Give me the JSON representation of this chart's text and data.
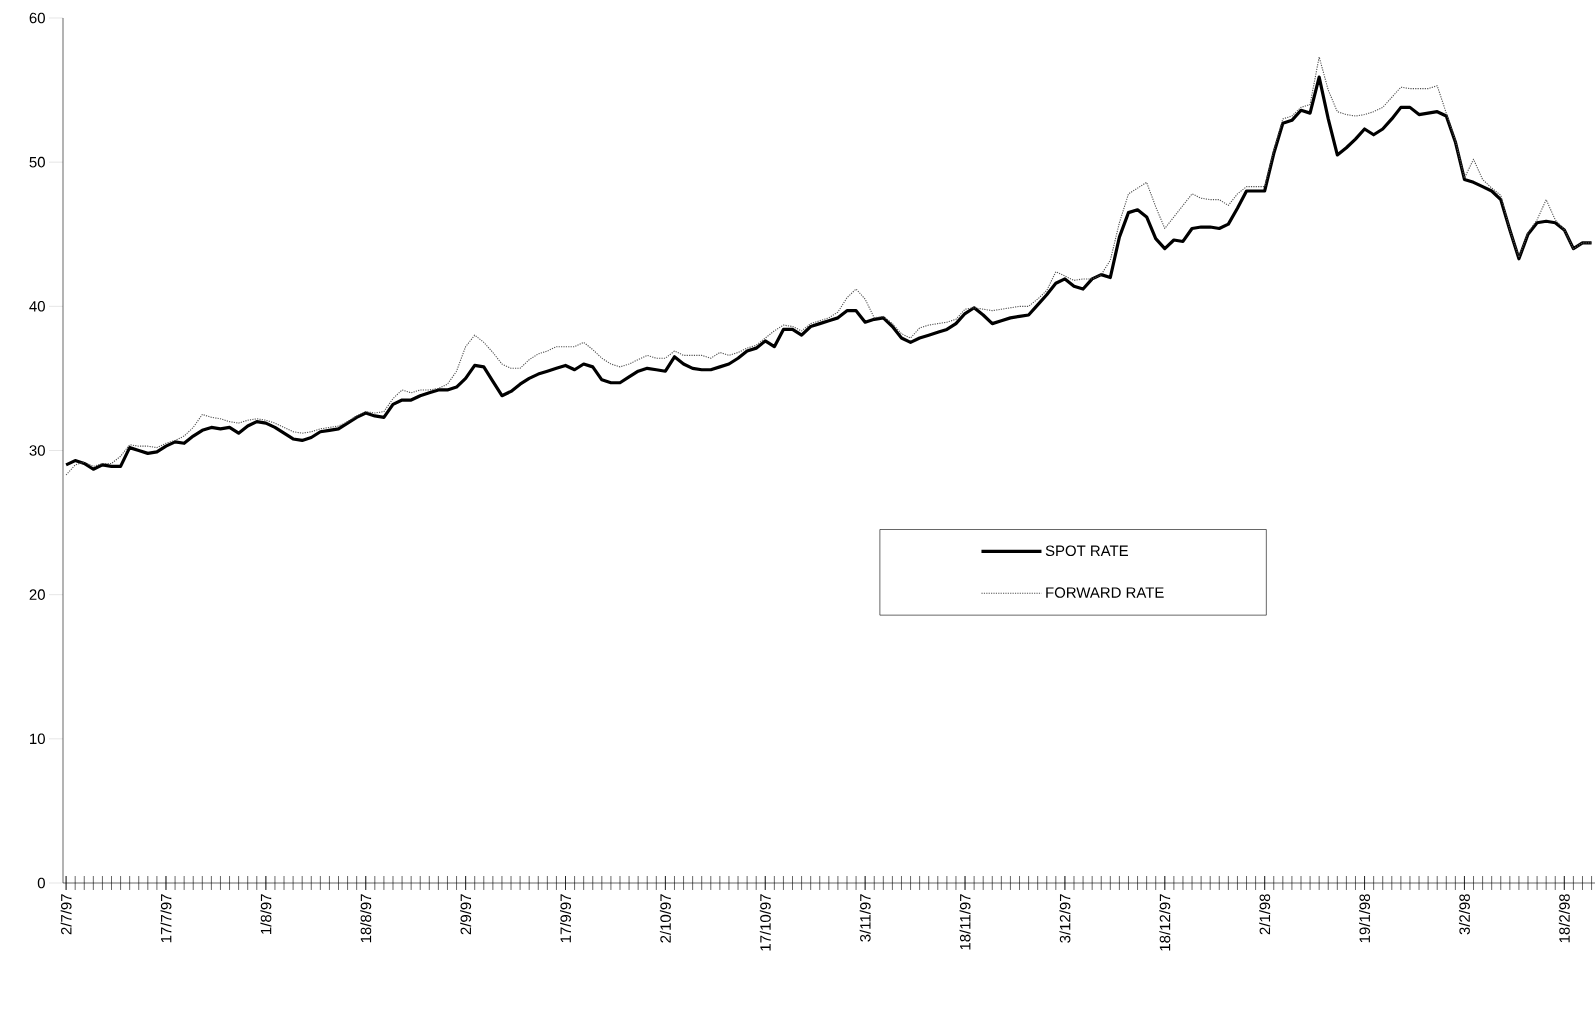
{
  "chart_data": {
    "type": "line",
    "categories": [
      "2/7/97",
      null,
      null,
      null,
      null,
      null,
      null,
      null,
      null,
      null,
      null,
      "17/7/97",
      null,
      null,
      null,
      null,
      null,
      null,
      null,
      null,
      null,
      null,
      "1/8/97",
      null,
      null,
      null,
      null,
      null,
      null,
      null,
      null,
      null,
      null,
      "18/8/97",
      null,
      null,
      null,
      null,
      null,
      null,
      null,
      null,
      null,
      null,
      "2/9/97",
      null,
      null,
      null,
      null,
      null,
      null,
      null,
      null,
      null,
      null,
      "17/9/97",
      null,
      null,
      null,
      null,
      null,
      null,
      null,
      null,
      null,
      null,
      "2/10/97",
      null,
      null,
      null,
      null,
      null,
      null,
      null,
      null,
      null,
      null,
      "17/10/97",
      null,
      null,
      null,
      null,
      null,
      null,
      null,
      null,
      null,
      null,
      "3/11/97",
      null,
      null,
      null,
      null,
      null,
      null,
      null,
      null,
      null,
      null,
      "18/11/97",
      null,
      null,
      null,
      null,
      null,
      null,
      null,
      null,
      null,
      null,
      "3/12/97",
      null,
      null,
      null,
      null,
      null,
      null,
      null,
      null,
      null,
      null,
      "18/12/97",
      null,
      null,
      null,
      null,
      null,
      null,
      null,
      null,
      null,
      null,
      "2/1/98",
      null,
      null,
      null,
      null,
      null,
      null,
      null,
      null,
      null,
      null,
      "19/1/98",
      null,
      null,
      null,
      null,
      null,
      null,
      null,
      null,
      null,
      null,
      "3/2/98",
      null,
      null,
      null,
      null,
      null,
      null,
      null,
      null,
      null,
      null,
      "18/2/98",
      null,
      null,
      null
    ],
    "series": [
      {
        "name": "SPOT RATE",
        "color": "#000000",
        "line_style": "solid",
        "values": [
          29.0,
          29.3,
          29.1,
          28.7,
          29.0,
          28.9,
          28.9,
          30.2,
          30.0,
          29.8,
          29.9,
          30.3,
          30.6,
          30.5,
          31.0,
          31.4,
          31.6,
          31.5,
          31.6,
          31.2,
          31.7,
          32.0,
          31.9,
          31.6,
          31.2,
          30.8,
          30.7,
          30.9,
          31.3,
          31.4,
          31.5,
          31.9,
          32.3,
          32.6,
          32.4,
          32.3,
          33.2,
          33.5,
          33.5,
          33.8,
          34.0,
          34.2,
          34.2,
          34.4,
          35.0,
          35.9,
          35.8,
          34.8,
          33.8,
          34.1,
          34.6,
          35.0,
          35.3,
          35.5,
          35.7,
          35.9,
          35.6,
          36.0,
          35.8,
          34.9,
          34.7,
          34.7,
          35.1,
          35.5,
          35.7,
          35.6,
          35.5,
          36.5,
          36.0,
          35.7,
          35.6,
          35.6,
          35.8,
          36.0,
          36.4,
          36.9,
          37.1,
          37.6,
          37.2,
          38.4,
          38.4,
          38.0,
          38.6,
          38.8,
          39.0,
          39.2,
          39.7,
          39.7,
          38.9,
          39.1,
          39.2,
          38.6,
          37.8,
          37.5,
          37.8,
          38.0,
          38.2,
          38.4,
          38.8,
          39.5,
          39.9,
          39.4,
          38.8,
          39.0,
          39.2,
          39.3,
          39.4,
          40.1,
          40.8,
          41.6,
          41.9,
          41.4,
          41.2,
          41.9,
          42.2,
          42.0,
          44.8,
          46.5,
          46.7,
          46.2,
          44.7,
          44.0,
          44.6,
          44.5,
          45.4,
          45.5,
          45.5,
          45.4,
          45.7,
          46.8,
          48.0,
          48.0,
          48.0,
          50.6,
          52.7,
          52.9,
          53.6,
          53.4,
          55.9,
          53.0,
          50.5,
          51.0,
          51.6,
          52.3,
          51.9,
          52.3,
          53.0,
          53.8,
          53.8,
          53.3,
          53.4,
          53.5,
          53.2,
          51.4,
          48.8,
          48.6,
          48.3,
          48.0,
          47.4,
          45.3,
          43.3,
          45.0,
          45.8,
          45.9,
          45.8,
          45.3,
          44.0,
          44.4,
          44.4
        ]
      },
      {
        "name": "FORWARD RATE",
        "color": "#505050",
        "line_style": "dotted",
        "values": [
          28.3,
          29.0,
          29.2,
          28.9,
          29.1,
          29.1,
          29.6,
          30.4,
          30.3,
          30.3,
          30.2,
          30.5,
          30.7,
          31.0,
          31.6,
          32.5,
          32.3,
          32.2,
          32.0,
          31.9,
          32.1,
          32.2,
          32.1,
          31.9,
          31.6,
          31.3,
          31.2,
          31.3,
          31.5,
          31.6,
          31.7,
          32.0,
          32.4,
          32.7,
          32.6,
          32.7,
          33.6,
          34.2,
          34.0,
          34.2,
          34.2,
          34.3,
          34.6,
          35.5,
          37.2,
          38.0,
          37.5,
          36.8,
          36.0,
          35.7,
          35.7,
          36.3,
          36.7,
          36.9,
          37.2,
          37.2,
          37.2,
          37.5,
          37.0,
          36.4,
          36.0,
          35.8,
          36.0,
          36.3,
          36.6,
          36.4,
          36.4,
          36.9,
          36.6,
          36.6,
          36.6,
          36.4,
          36.8,
          36.6,
          36.8,
          37.1,
          37.3,
          37.8,
          38.3,
          38.7,
          38.6,
          38.3,
          38.8,
          39.0,
          39.2,
          39.6,
          40.6,
          41.2,
          40.5,
          39.2,
          39.3,
          38.8,
          38.1,
          37.8,
          38.5,
          38.7,
          38.8,
          38.9,
          39.1,
          39.8,
          39.9,
          39.8,
          39.7,
          39.8,
          39.9,
          40.0,
          40.0,
          40.5,
          41.1,
          42.4,
          42.1,
          41.8,
          41.9,
          41.9,
          42.2,
          43.2,
          45.8,
          47.8,
          48.2,
          48.6,
          46.9,
          45.4,
          46.2,
          47.0,
          47.8,
          47.5,
          47.4,
          47.4,
          47.0,
          47.8,
          48.3,
          48.3,
          48.3,
          50.8,
          53.0,
          53.2,
          53.8,
          54.0,
          57.3,
          55.0,
          53.5,
          53.3,
          53.2,
          53.3,
          53.5,
          53.8,
          54.5,
          55.2,
          55.1,
          55.1,
          55.1,
          55.3,
          53.4,
          51.5,
          48.9,
          50.2,
          48.8,
          48.2,
          47.7,
          45.3,
          43.4,
          45.1,
          46.0,
          47.4,
          46.0,
          45.3,
          44.0,
          44.4,
          44.4
        ]
      }
    ],
    "ylim": [
      0,
      60
    ],
    "yticks": [
      0,
      10,
      20,
      30,
      40,
      50,
      60
    ],
    "legend": "right"
  }
}
